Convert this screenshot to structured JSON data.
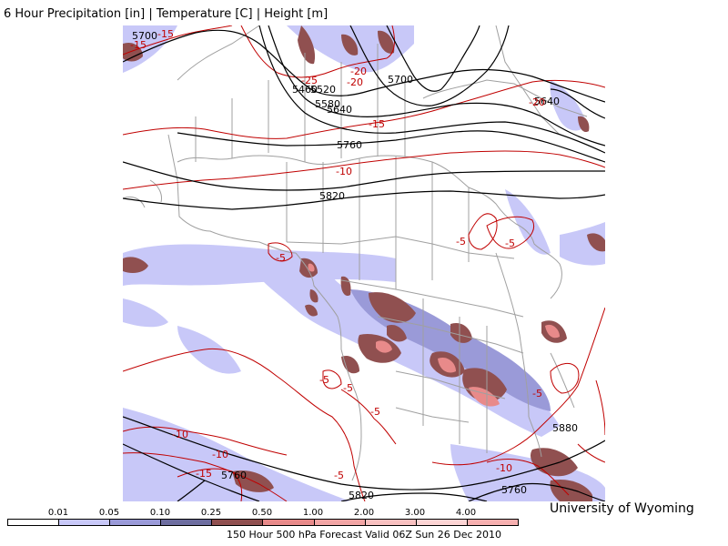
{
  "header": {
    "title": "6 Hour Precipitation [in] | Temperature [C] | Height [m]"
  },
  "footer": {
    "credit": "University of Wyoming",
    "subtitle": "150 Hour 500 hPa Forecast Valid 06Z Sun 26 Dec 2010"
  },
  "legend": {
    "labels": [
      "0.01",
      "0.05",
      "0.10",
      "0.25",
      "0.50",
      "1.00",
      "2.00",
      "3.00",
      "4.00"
    ],
    "colors": [
      "#ffffff",
      "#c8c8f8",
      "#9a9ad8",
      "#6e6ea0",
      "#905050",
      "#e88a8a",
      "#f2a5a5",
      "#f8c0c0",
      "#fcd4d4",
      "#f7b0b0"
    ]
  },
  "colors": {
    "height_contour": "#000000",
    "temperature_contour": "#c00000",
    "map_borders": "#a0a0a0"
  },
  "height_labels": [
    "5700",
    "5460",
    "5520",
    "5580",
    "5640",
    "5700",
    "5760",
    "5820",
    "5640",
    "5880",
    "5760",
    "5820",
    "5760"
  ],
  "temperature_labels": [
    "-15",
    "-15",
    "-25",
    "-20",
    "-20",
    "-15",
    "-10",
    "-20",
    "-5",
    "-5",
    "-5",
    "-5",
    "-5",
    "-5",
    "-5",
    "-10",
    "-10",
    "-15",
    "-5",
    "-10"
  ]
}
